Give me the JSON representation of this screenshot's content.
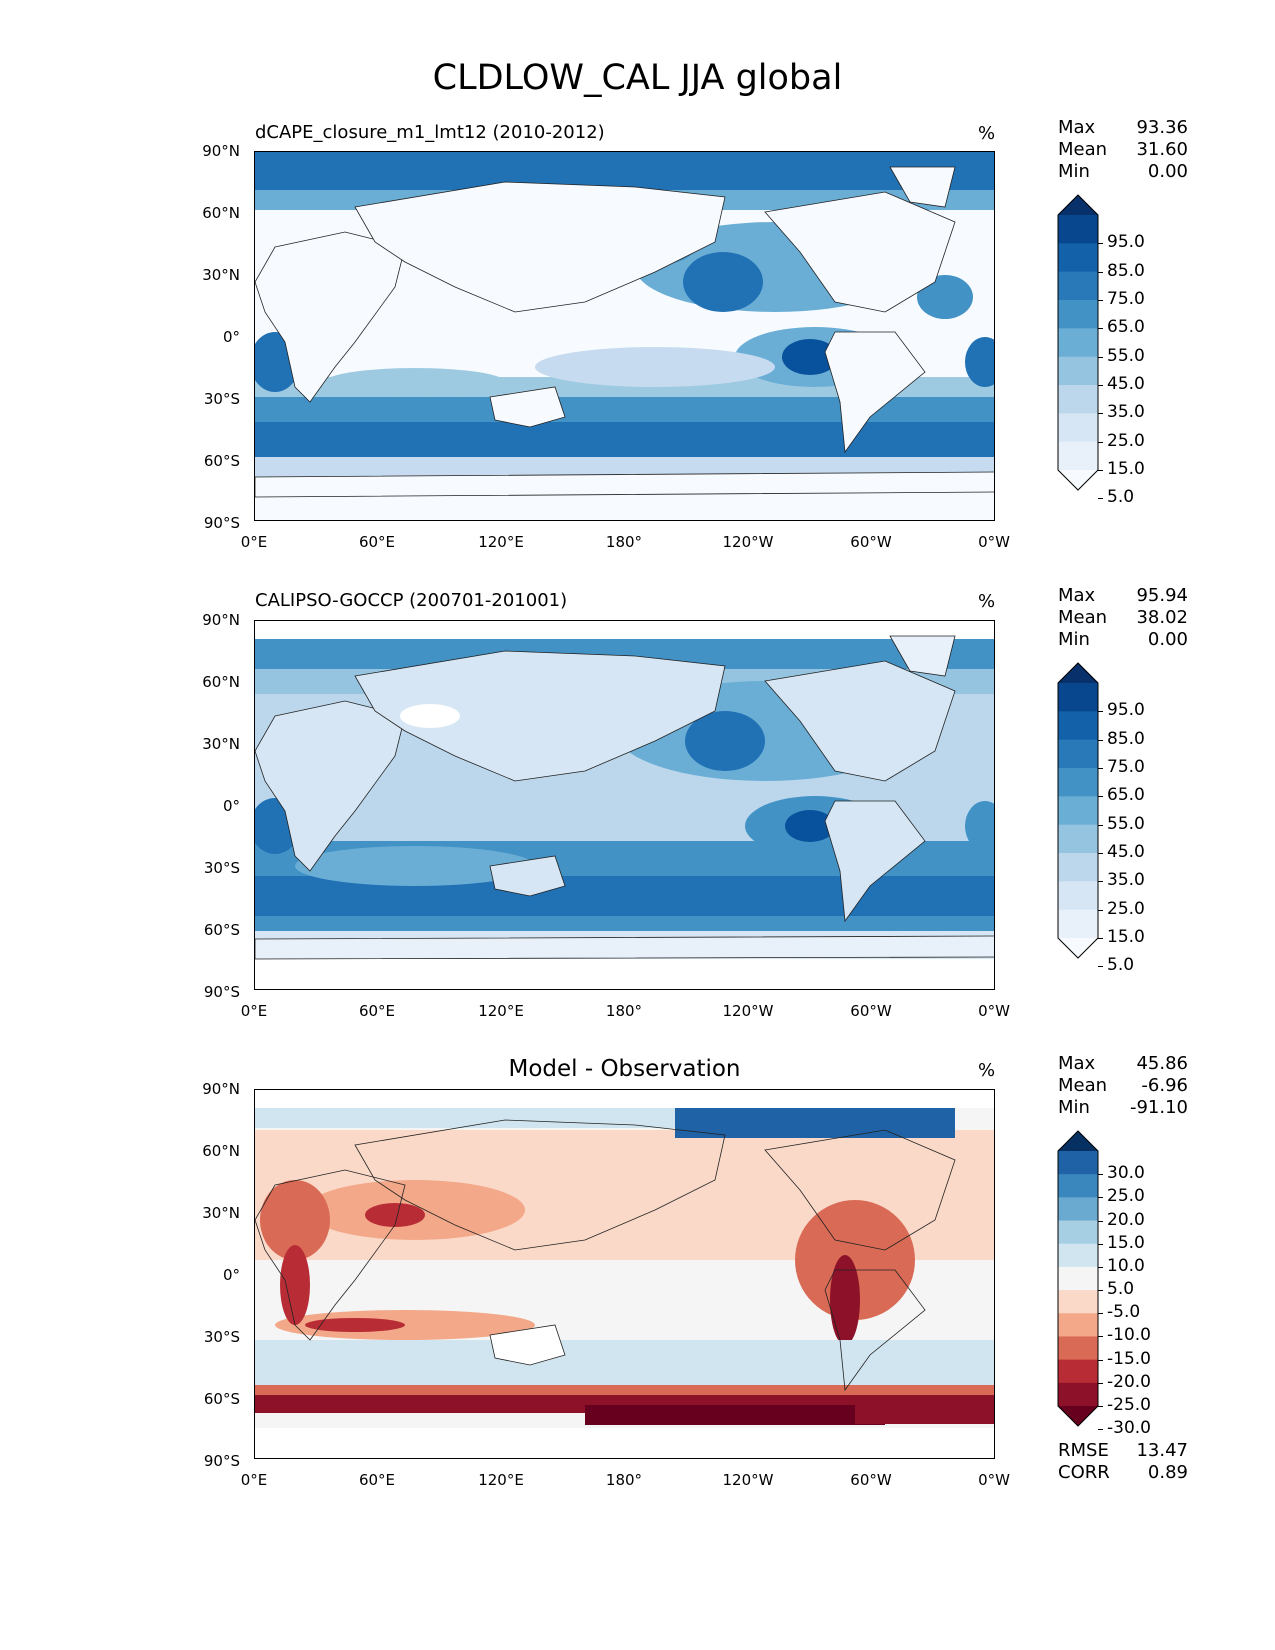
{
  "title": "CLDLOW_CAL JJA global",
  "unit": "%",
  "lat_labels": [
    "90°N",
    "60°N",
    "30°N",
    "0°",
    "30°S",
    "60°S",
    "90°S"
  ],
  "lon_labels": [
    "0°E",
    "60°E",
    "120°E",
    "180°",
    "120°W",
    "60°W",
    "0°W"
  ],
  "panels": [
    {
      "subtitle": "dCAPE_closure_m1_lmt12 (2010-2012)",
      "stats": [
        {
          "label": "Max",
          "value": "93.36"
        },
        {
          "label": "Mean",
          "value": "31.60"
        },
        {
          "label": "Min",
          "value": "0.00"
        }
      ],
      "colorbar": {
        "labels": [
          "95.0",
          "85.0",
          "75.0",
          "65.0",
          "55.0",
          "45.0",
          "35.0",
          "25.0",
          "15.0",
          "5.0"
        ],
        "colors": [
          "#08306b",
          "#08468e",
          "#1361a9",
          "#2979b9",
          "#4292c6",
          "#6aaed6",
          "#94c4df",
          "#bcd7eb",
          "#d6e6f4",
          "#e8f1fa",
          "#f7fbff"
        ]
      }
    },
    {
      "subtitle": "CALIPSO-GOCCP (200701-201001)",
      "stats": [
        {
          "label": "Max",
          "value": "95.94"
        },
        {
          "label": "Mean",
          "value": "38.02"
        },
        {
          "label": "Min",
          "value": "0.00"
        }
      ],
      "colorbar": {
        "labels": [
          "95.0",
          "85.0",
          "75.0",
          "65.0",
          "55.0",
          "45.0",
          "35.0",
          "25.0",
          "15.0",
          "5.0"
        ],
        "colors": [
          "#08306b",
          "#08468e",
          "#1361a9",
          "#2979b9",
          "#4292c6",
          "#6aaed6",
          "#94c4df",
          "#bcd7eb",
          "#d6e6f4",
          "#e8f1fa",
          "#f7fbff"
        ]
      }
    },
    {
      "subtitle": "Model - Observation",
      "stats": [
        {
          "label": "Max",
          "value": "45.86"
        },
        {
          "label": "Mean",
          "value": "-6.96"
        },
        {
          "label": "Min",
          "value": "-91.10"
        }
      ],
      "extra_stats": [
        {
          "label": "RMSE",
          "value": "13.47"
        },
        {
          "label": "CORR",
          "value": "0.89"
        }
      ],
      "colorbar": {
        "labels": [
          "30.0",
          "25.0",
          "20.0",
          "15.0",
          "10.0",
          "5.0",
          "-5.0",
          "-10.0",
          "-15.0",
          "-20.0",
          "-25.0",
          "-30.0"
        ],
        "colors": [
          "#053061",
          "#1f63a6",
          "#3a87bd",
          "#6aa9d0",
          "#a6cfe3",
          "#d1e5f0",
          "#f5f5f5",
          "#fbd9c8",
          "#f2a889",
          "#d96a55",
          "#b82d35",
          "#8d1128",
          "#67001f"
        ]
      }
    }
  ]
}
